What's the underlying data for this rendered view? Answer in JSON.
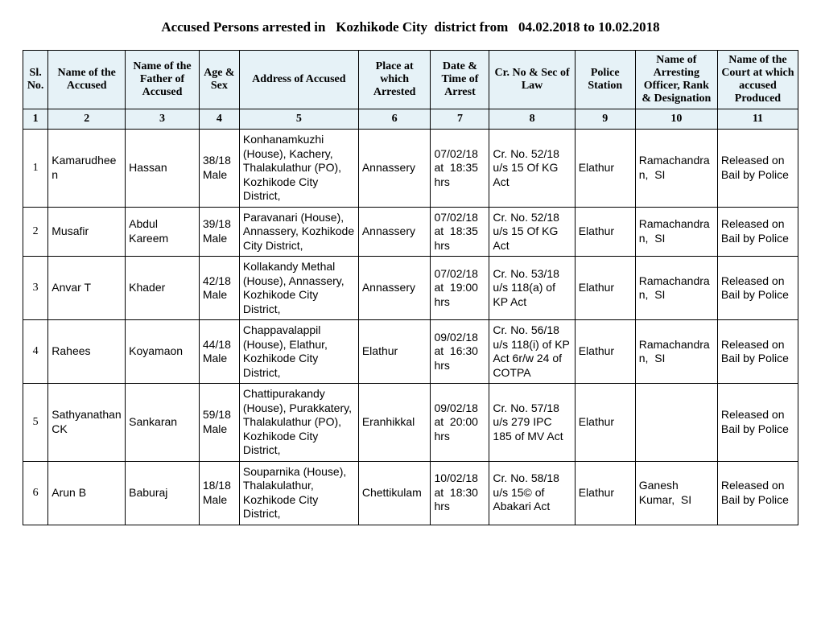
{
  "title": "Accused Persons arrested in   Kozhikode City  district from   04.02.2018 to 10.02.2018",
  "headers": [
    "Sl. No.",
    "Name of the Accused",
    "Name of the Father of Accused",
    "Age & Sex",
    "Address of Accused",
    "Place at which Arrested",
    "Date & Time of Arrest",
    "Cr. No & Sec of Law",
    "Police Station",
    "Name of Arresting Officer, Rank & Designation",
    "Name of the Court at which accused Produced"
  ],
  "numrow": [
    "1",
    "2",
    "3",
    "4",
    "5",
    "6",
    "7",
    "8",
    "9",
    "10",
    "11"
  ],
  "rows": [
    {
      "sl": "1",
      "name": "Kamarudheen",
      "father": "Hassan",
      "age": "38/18 Male",
      "address": "Konhanamkuzhi (House), Kachery, Thalakulathur (PO), Kozhikode City District,",
      "place": "Annassery",
      "datetime": "07/02/18 at  18:35 hrs",
      "crno": "Cr. No. 52/18 u/s 15 Of KG Act",
      "station": "Elathur",
      "officer": "Ramachandran,  SI",
      "court": "Released on Bail by Police"
    },
    {
      "sl": "2",
      "name": "Musafir",
      "father": "Abdul Kareem",
      "age": "39/18 Male",
      "address": "Paravanari (House), Annassery, Kozhikode City District,",
      "place": "Annassery",
      "datetime": "07/02/18 at  18:35 hrs",
      "crno": "Cr. No. 52/18 u/s 15 Of KG Act",
      "station": "Elathur",
      "officer": "Ramachandran,  SI",
      "court": "Released on Bail by Police"
    },
    {
      "sl": "3",
      "name": "Anvar T",
      "father": "Khader",
      "age": "42/18 Male",
      "address": "Kollakandy Methal (House), Annassery, Kozhikode City District,",
      "place": "Annassery",
      "datetime": "07/02/18 at  19:00 hrs",
      "crno": "Cr. No. 53/18 u/s 118(a) of KP Act",
      "station": "Elathur",
      "officer": "Ramachandran,  SI",
      "court": "Released on Bail by Police"
    },
    {
      "sl": "4",
      "name": "Rahees",
      "father": "Koyamaon",
      "age": "44/18 Male",
      "address": "Chappavalappil (House), Elathur, Kozhikode City District,",
      "place": "Elathur",
      "datetime": "09/02/18 at  16:30 hrs",
      "crno": "Cr. No. 56/18 u/s 118(i) of KP Act 6r/w 24 of COTPA",
      "station": "Elathur",
      "officer": "Ramachandran,  SI",
      "court": "Released on Bail by Police"
    },
    {
      "sl": "5",
      "name": "Sathyanathan CK",
      "father": "Sankaran",
      "age": "59/18 Male",
      "address": "Chattipurakandy (House), Purakkatery, Thalakulathur (PO), Kozhikode City District,",
      "place": "Eranhikkal",
      "datetime": "09/02/18 at  20:00 hrs",
      "crno": "Cr. No. 57/18 u/s 279 IPC 185 of MV Act",
      "station": "Elathur",
      "officer": "",
      "court": "Released on Bail by Police"
    },
    {
      "sl": "6",
      "name": "Arun B",
      "father": "Baburaj",
      "age": "18/18 Male",
      "address": "Souparnika (House), Thalakulathur, Kozhikode City District,",
      "place": "Chettikulam",
      "datetime": "10/02/18 at  18:30 hrs",
      "crno": "Cr. No. 58/18 u/s 15© of Abakari Act",
      "station": "Elathur",
      "officer": "Ganesh Kumar,  SI",
      "court": "Released on Bail by Police"
    }
  ]
}
